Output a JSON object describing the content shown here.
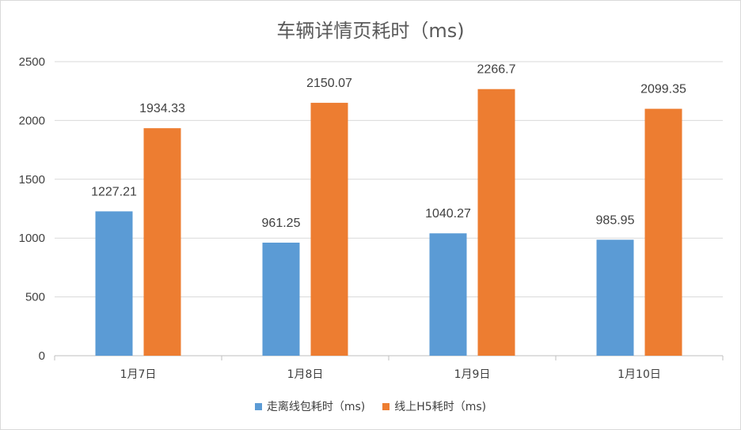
{
  "chart_data": {
    "type": "bar",
    "title": "车辆详情页耗时（ms)",
    "categories": [
      "1月7日",
      "1月8日",
      "1月9日",
      "1月10日"
    ],
    "series": [
      {
        "name": "走离线包耗时（ms)",
        "color": "#5B9BD5",
        "values": [
          1227.21,
          961.25,
          1040.27,
          985.95
        ]
      },
      {
        "name": "线上H5耗时（ms)",
        "color": "#ED7D31",
        "values": [
          1934.33,
          2150.07,
          2266.7,
          2099.35
        ]
      }
    ],
    "ylim": [
      0,
      2500
    ],
    "yticks": [
      0,
      500,
      1000,
      1500,
      2000,
      2500
    ],
    "grid": true,
    "legend": "bottom"
  }
}
